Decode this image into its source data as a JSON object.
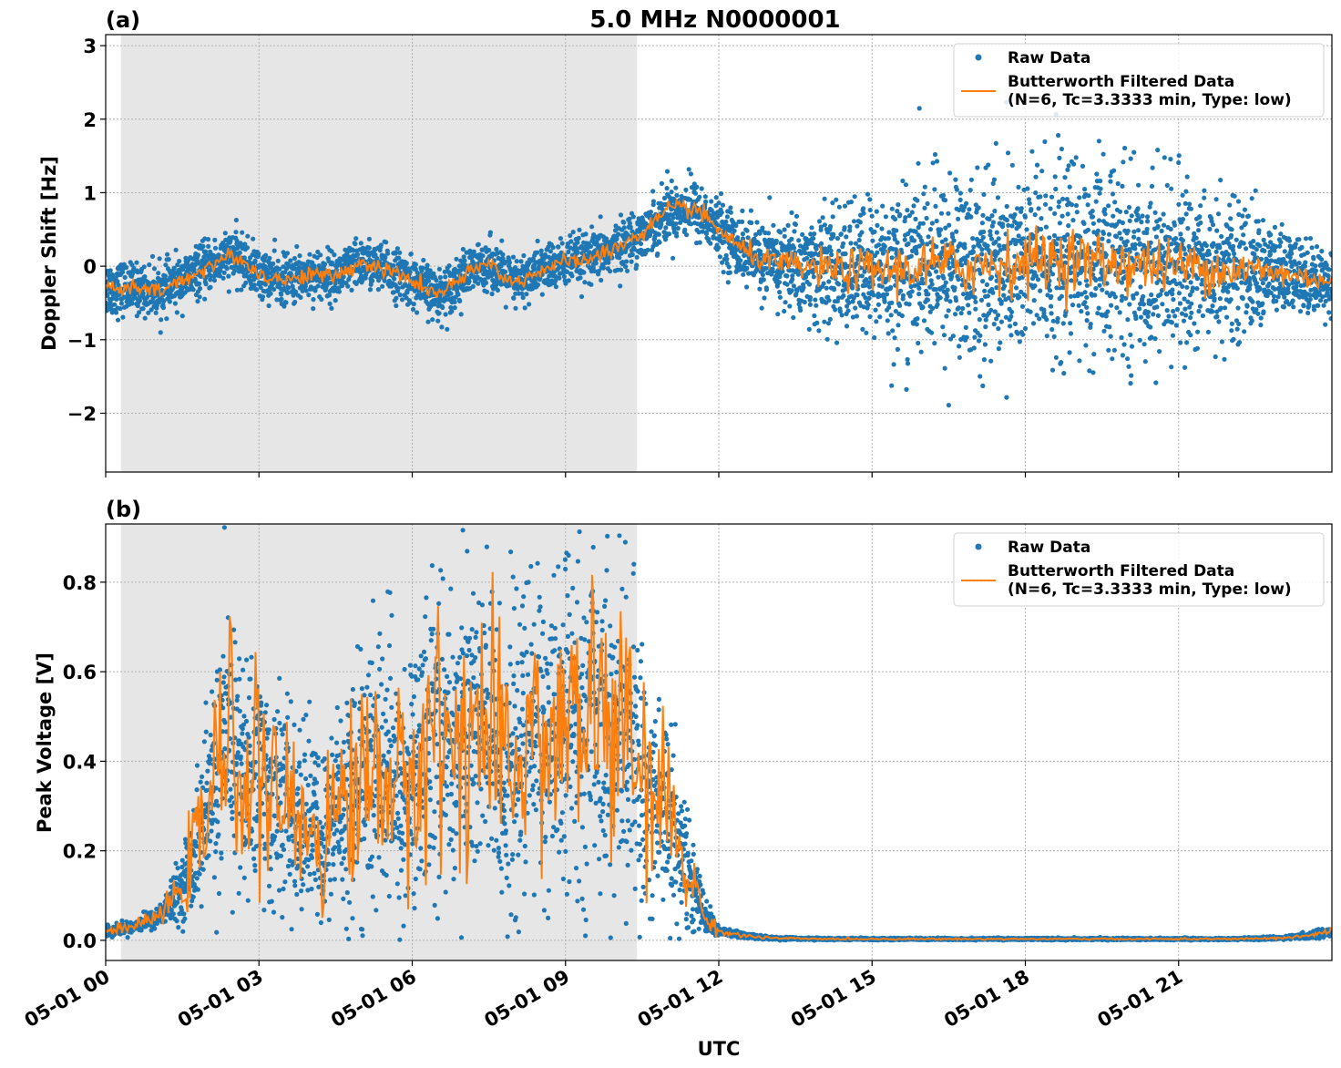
{
  "chart_data": {
    "type": "scatter",
    "title": "5.0 MHz N0000001",
    "xlabel": "UTC",
    "x_ticks": [
      "05-01 00",
      "05-01 03",
      "05-01 06",
      "05-01 09",
      "05-01 12",
      "05-01 15",
      "05-01 18",
      "05-01 21"
    ],
    "x_range_hours": [
      0,
      24
    ],
    "shaded_region_hours": [
      0.3,
      10.4
    ],
    "grid": true,
    "legend_position": "top-right",
    "colors": {
      "raw": "#1f77b4",
      "filtered": "#ff7f0e",
      "shade": "#e6e6e6"
    },
    "panels": [
      {
        "label": "(a)",
        "ylabel": "Doppler Shift [Hz]",
        "ylim": [
          -2.8,
          3.15
        ],
        "yticks": [
          -2,
          -1,
          0,
          1,
          2,
          3
        ],
        "ytick_labels": [
          "−2",
          "−1",
          "0",
          "1",
          "2",
          "3"
        ],
        "legend": {
          "raw": "Raw Data",
          "filtered_line1": "Butterworth Filtered Data",
          "filtered_line2": "(N=6, Tc=3.3333 min, Type: low)"
        },
        "series": [
          {
            "name": "Raw Data",
            "x": [
              0,
              0.5,
              1,
              1.5,
              2,
              2.5,
              3,
              3.5,
              4,
              4.5,
              5,
              5.5,
              6,
              6.5,
              7,
              7.5,
              8,
              8.5,
              9,
              9.5,
              10,
              10.5,
              11,
              11.5,
              12,
              12.5,
              13,
              13.5,
              14,
              14.5,
              15,
              15.5,
              16,
              16.5,
              17,
              17.5,
              18,
              18.5,
              19,
              19.5,
              20,
              20.5,
              21,
              21.5,
              22,
              22.5,
              23,
              23.5,
              24
            ],
            "y_center": [
              -0.3,
              -0.3,
              -0.35,
              -0.2,
              0.0,
              0.15,
              -0.1,
              -0.2,
              -0.1,
              -0.15,
              0.05,
              -0.05,
              -0.2,
              -0.4,
              -0.15,
              0.05,
              -0.25,
              -0.05,
              0.05,
              0.1,
              0.25,
              0.45,
              0.75,
              0.8,
              0.5,
              0.2,
              0.05,
              0.0,
              -0.05,
              -0.05,
              -0.05,
              -0.05,
              0.0,
              0.0,
              0.0,
              0.05,
              0.05,
              0.1,
              0.1,
              0.05,
              0.05,
              0.0,
              0.0,
              0.0,
              -0.05,
              -0.05,
              -0.1,
              -0.15,
              -0.2
            ],
            "y_spread": [
              0.35,
              0.3,
              0.3,
              0.3,
              0.3,
              0.3,
              0.3,
              0.3,
              0.3,
              0.3,
              0.3,
              0.3,
              0.3,
              0.3,
              0.3,
              0.3,
              0.3,
              0.3,
              0.3,
              0.3,
              0.3,
              0.3,
              0.35,
              0.35,
              0.35,
              0.4,
              0.45,
              0.6,
              0.7,
              0.75,
              0.85,
              0.95,
              1.05,
              1.1,
              1.15,
              1.2,
              1.2,
              1.2,
              1.2,
              1.15,
              1.1,
              1.05,
              1.0,
              0.95,
              0.85,
              0.7,
              0.55,
              0.45,
              0.35
            ]
          },
          {
            "name": "Butterworth Filtered Data",
            "x": [
              0,
              0.5,
              1,
              1.5,
              2,
              2.5,
              3,
              3.5,
              4,
              4.5,
              5,
              5.5,
              6,
              6.5,
              7,
              7.5,
              8,
              8.5,
              9,
              9.5,
              10,
              10.5,
              11,
              11.5,
              12,
              12.5,
              13,
              13.5,
              14,
              14.5,
              15,
              15.5,
              16,
              16.5,
              17,
              17.5,
              18,
              18.5,
              19,
              19.5,
              20,
              20.5,
              21,
              21.5,
              22,
              22.5,
              23,
              23.5,
              24
            ],
            "y": [
              -0.3,
              -0.3,
              -0.35,
              -0.2,
              0.0,
              0.15,
              -0.1,
              -0.2,
              -0.1,
              -0.15,
              0.05,
              -0.05,
              -0.2,
              -0.4,
              -0.15,
              0.05,
              -0.25,
              -0.05,
              0.05,
              0.1,
              0.25,
              0.45,
              0.75,
              0.8,
              0.5,
              0.2,
              0.05,
              0.0,
              -0.05,
              -0.05,
              -0.05,
              -0.05,
              0.0,
              0.0,
              0.0,
              0.05,
              0.05,
              0.1,
              0.1,
              0.05,
              0.05,
              0.0,
              0.0,
              0.0,
              -0.05,
              -0.05,
              -0.1,
              -0.15,
              -0.2
            ]
          }
        ]
      },
      {
        "label": "(b)",
        "ylabel": "Peak Voltage [V]",
        "ylim": [
          -0.045,
          0.93
        ],
        "yticks": [
          0.0,
          0.2,
          0.4,
          0.6,
          0.8
        ],
        "ytick_labels": [
          "0.0",
          "0.2",
          "0.4",
          "0.6",
          "0.8"
        ],
        "legend": {
          "raw": "Raw Data",
          "filtered_line1": "Butterworth Filtered Data",
          "filtered_line2": "(N=6, Tc=3.3333 min, Type: low)"
        },
        "series": [
          {
            "name": "Raw Data",
            "x": [
              0,
              0.5,
              1,
              1.25,
              1.5,
              1.75,
              2,
              2.25,
              2.5,
              2.75,
              3,
              3.25,
              3.5,
              3.75,
              4,
              4.25,
              4.5,
              4.75,
              5,
              5.25,
              5.5,
              5.75,
              6,
              6.25,
              6.5,
              6.75,
              7,
              7.25,
              7.5,
              7.75,
              8,
              8.25,
              8.5,
              8.75,
              9,
              9.25,
              9.5,
              9.75,
              10,
              10.25,
              10.5,
              10.75,
              11,
              11.25,
              11.5,
              11.75,
              12,
              12.5,
              13,
              14,
              15,
              16,
              17,
              18,
              19,
              20,
              21,
              22,
              23,
              23.5,
              24
            ],
            "y_center": [
              0.02,
              0.03,
              0.05,
              0.08,
              0.12,
              0.2,
              0.3,
              0.4,
              0.45,
              0.35,
              0.4,
              0.3,
              0.32,
              0.25,
              0.28,
              0.2,
              0.3,
              0.32,
              0.35,
              0.38,
              0.4,
              0.3,
              0.35,
              0.45,
              0.5,
              0.4,
              0.5,
              0.48,
              0.45,
              0.35,
              0.4,
              0.45,
              0.5,
              0.4,
              0.5,
              0.45,
              0.55,
              0.5,
              0.45,
              0.45,
              0.35,
              0.3,
              0.3,
              0.2,
              0.12,
              0.05,
              0.02,
              0.01,
              0.005,
              0.003,
              0.003,
              0.003,
              0.003,
              0.003,
              0.003,
              0.003,
              0.003,
              0.003,
              0.005,
              0.01,
              0.02
            ],
            "y_spread": [
              0.01,
              0.012,
              0.02,
              0.04,
              0.06,
              0.12,
              0.18,
              0.25,
              0.28,
              0.22,
              0.25,
              0.2,
              0.2,
              0.18,
              0.2,
              0.16,
              0.22,
              0.24,
              0.26,
              0.28,
              0.3,
              0.24,
              0.26,
              0.3,
              0.32,
              0.28,
              0.34,
              0.34,
              0.34,
              0.28,
              0.3,
              0.32,
              0.33,
              0.28,
              0.34,
              0.32,
              0.34,
              0.33,
              0.32,
              0.3,
              0.25,
              0.22,
              0.22,
              0.15,
              0.08,
              0.03,
              0.01,
              0.006,
              0.003,
              0.002,
              0.002,
              0.002,
              0.002,
              0.002,
              0.002,
              0.002,
              0.002,
              0.002,
              0.003,
              0.006,
              0.01
            ]
          },
          {
            "name": "Butterworth Filtered Data",
            "x": [
              0,
              0.5,
              1,
              1.25,
              1.5,
              1.75,
              2,
              2.25,
              2.5,
              2.75,
              3,
              3.25,
              3.5,
              3.75,
              4,
              4.25,
              4.5,
              4.75,
              5,
              5.25,
              5.5,
              5.75,
              6,
              6.25,
              6.5,
              6.75,
              7,
              7.25,
              7.5,
              7.75,
              8,
              8.25,
              8.5,
              8.75,
              9,
              9.25,
              9.5,
              9.75,
              10,
              10.25,
              10.5,
              10.75,
              11,
              11.25,
              11.5,
              11.75,
              12,
              12.5,
              13,
              14,
              15,
              16,
              17,
              18,
              19,
              20,
              21,
              22,
              23,
              23.5,
              24
            ],
            "y": [
              0.02,
              0.03,
              0.05,
              0.08,
              0.12,
              0.2,
              0.3,
              0.4,
              0.45,
              0.35,
              0.4,
              0.3,
              0.32,
              0.25,
              0.28,
              0.2,
              0.3,
              0.32,
              0.35,
              0.38,
              0.4,
              0.3,
              0.35,
              0.45,
              0.5,
              0.4,
              0.5,
              0.48,
              0.45,
              0.35,
              0.4,
              0.45,
              0.5,
              0.4,
              0.5,
              0.45,
              0.55,
              0.5,
              0.45,
              0.45,
              0.35,
              0.3,
              0.3,
              0.2,
              0.12,
              0.05,
              0.02,
              0.01,
              0.005,
              0.003,
              0.003,
              0.003,
              0.003,
              0.003,
              0.003,
              0.003,
              0.003,
              0.003,
              0.005,
              0.01,
              0.02
            ]
          }
        ]
      }
    ]
  }
}
